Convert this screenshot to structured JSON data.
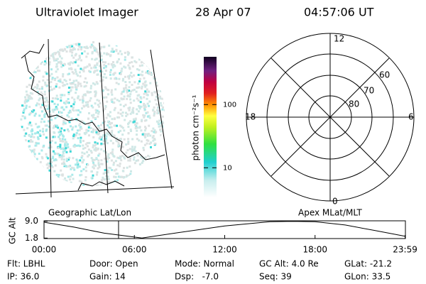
{
  "header": {
    "title": "Ultraviolet Imager",
    "date": "28 Apr 07",
    "time": "04:57:06 UT"
  },
  "map": {
    "label": "Geographic Lat/Lon"
  },
  "colorbar": {
    "label": "photon cm⁻²s⁻¹",
    "lim": [
      3.4,
      570
    ],
    "log": true,
    "ticks": [
      10,
      100
    ]
  },
  "polar": {
    "label": "Apex  MLat/MLT",
    "hour_labels": [
      "12",
      "18",
      "6",
      "0"
    ],
    "ring_labels": [
      "80",
      "70",
      "60"
    ]
  },
  "altitude": {
    "ylabel": "GC Alt",
    "xlim": [
      0,
      24
    ],
    "ylim": [
      1.6,
      9.2
    ],
    "yticks": [
      {
        "value": 9.0,
        "label": "9.0"
      },
      {
        "value": 1.8,
        "label": "1.8"
      }
    ],
    "xticks": [
      {
        "value": 0,
        "label": "00:00"
      },
      {
        "value": 6,
        "label": "06:00"
      },
      {
        "value": 12,
        "label": "12:00"
      },
      {
        "value": 18,
        "label": "18:00"
      },
      {
        "value": 23.98,
        "label": "23:59"
      }
    ],
    "x": [
      0,
      2,
      4,
      6.5,
      9,
      12,
      15,
      16.5,
      18,
      20,
      22,
      23.98
    ],
    "values": [
      8.6,
      6.5,
      3.9,
      1.8,
      4.2,
      7.0,
      8.8,
      9.0,
      8.8,
      7.4,
      5.0,
      2.6
    ],
    "color": "#000000",
    "marker_x": 4.95,
    "marker_color": "#cc0000"
  },
  "info": [
    [
      "Flt: LBHL",
      "Door: Open",
      "Mode: Normal",
      "GC Alt: 4.0 Re",
      "GLat: -21.2"
    ],
    [
      "IP: 36.0",
      "Gain: 14",
      "Dsp:   -7.0",
      "Seq: 39",
      "GLon: 33.5"
    ]
  ]
}
